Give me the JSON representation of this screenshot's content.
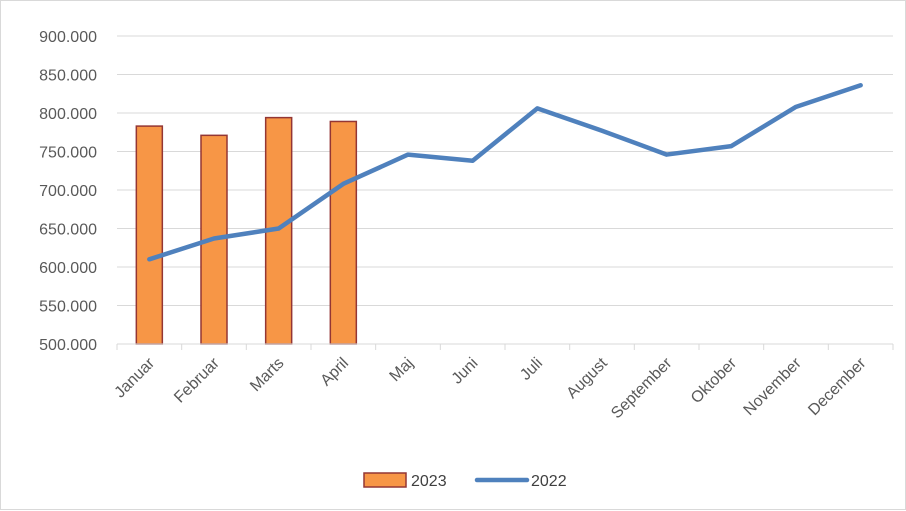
{
  "chart_data": {
    "type": "bar+line",
    "categories": [
      "Januar",
      "Februar",
      "Marts",
      "April",
      "Maj",
      "Juni",
      "Juli",
      "August",
      "September",
      "Oktober",
      "November",
      "December"
    ],
    "y_ticks": [
      "500.000",
      "550.000",
      "600.000",
      "650.000",
      "700.000",
      "750.000",
      "800.000",
      "850.000",
      "900.000"
    ],
    "ylim": [
      500000,
      900000
    ],
    "grid": true,
    "legend_position": "bottom",
    "series": [
      {
        "name": "2023",
        "type": "bar",
        "color": "#f79646",
        "border_color": "#943634",
        "values": [
          783000,
          771000,
          794000,
          789000,
          null,
          null,
          null,
          null,
          null,
          null,
          null,
          null
        ]
      },
      {
        "name": "2022",
        "type": "line",
        "color": "#4f81bd",
        "values": [
          610000,
          637000,
          650000,
          708000,
          746000,
          738000,
          806000,
          777000,
          746000,
          757000,
          808000,
          836000
        ]
      }
    ]
  }
}
